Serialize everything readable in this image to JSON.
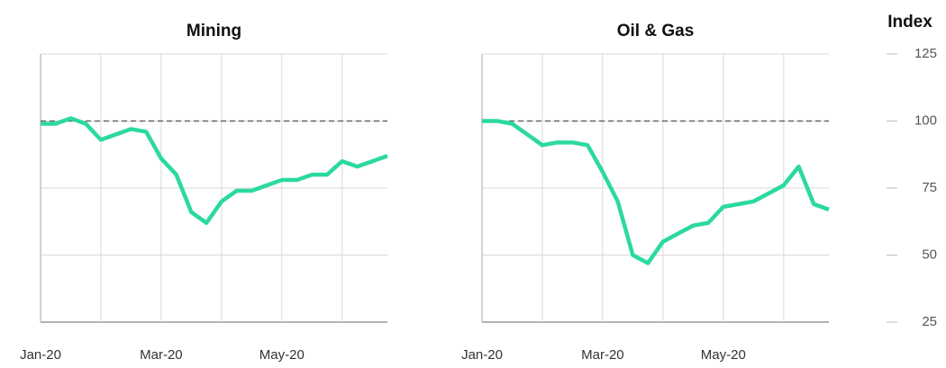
{
  "chart_data": [
    {
      "type": "line",
      "title": "Mining",
      "categories": [
        "Jan-20",
        null,
        null,
        null,
        null,
        null,
        null,
        null,
        "Mar-20",
        null,
        null,
        null,
        null,
        null,
        null,
        null,
        "May-20",
        null,
        null,
        null,
        null,
        null,
        null,
        null
      ],
      "values": [
        99,
        99,
        101,
        99,
        93,
        95,
        97,
        96,
        86,
        80,
        66,
        62,
        70,
        74,
        74,
        76,
        78,
        78,
        80,
        80,
        85,
        83,
        85,
        87
      ],
      "color": "#2bd99f",
      "ylim": [
        25,
        125
      ],
      "yticks": [
        25,
        50,
        75,
        100,
        125
      ],
      "reference_line": 100,
      "grid": true,
      "ytick_side": "none"
    },
    {
      "type": "line",
      "title": "Oil & Gas",
      "categories": [
        "Jan-20",
        null,
        null,
        null,
        null,
        null,
        null,
        null,
        "Mar-20",
        null,
        null,
        null,
        null,
        null,
        null,
        null,
        "May-20",
        null,
        null,
        null,
        null,
        null,
        null,
        null
      ],
      "values": [
        100,
        100,
        99,
        95,
        91,
        92,
        92,
        91,
        81,
        70,
        50,
        47,
        55,
        58,
        61,
        62,
        68,
        69,
        70,
        73,
        76,
        83,
        69,
        67
      ],
      "color": "#2bd99f",
      "ylim": [
        25,
        125
      ],
      "yticks": [
        25,
        50,
        75,
        100,
        125
      ],
      "reference_line": 100,
      "grid": true,
      "ytick_side": "right",
      "y_label": "Index"
    }
  ]
}
